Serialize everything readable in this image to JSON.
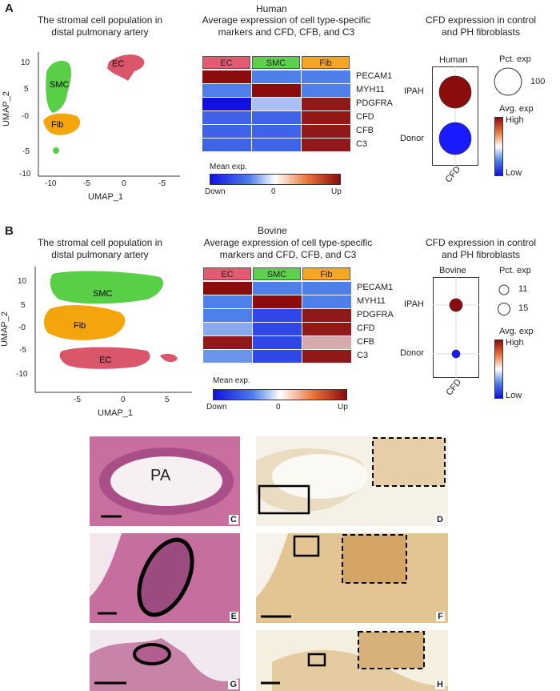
{
  "panelA": {
    "letter": "A",
    "species": "Human",
    "umap": {
      "title_line1": "The stromal cell population in",
      "title_line2": "distal pulmonary artery",
      "xlabel": "UMAP_1",
      "ylabel": "UMAP_2",
      "xticks": [
        "-10",
        "-5",
        "0",
        "-5"
      ],
      "yticks": [
        "10",
        "5",
        "-0",
        "-5",
        "-10"
      ],
      "clusters": [
        {
          "label": "EC",
          "color": "#d9566b"
        },
        {
          "label": "SMC",
          "color": "#58cf46"
        },
        {
          "label": "Fib",
          "color": "#f4a50c"
        }
      ]
    },
    "heatmap": {
      "title_line1": "Average expression of cell type-specific",
      "title_line2": "markers and CFD, CFB, and C3",
      "columns": [
        {
          "label": "EC",
          "color": "#e35b70"
        },
        {
          "label": "SMC",
          "color": "#5fcf50"
        },
        {
          "label": "Fib",
          "color": "#f5a623"
        }
      ],
      "genes": [
        "PECAM1",
        "MYH11",
        "PDGFRA",
        "CFD",
        "CFB",
        "C3"
      ],
      "values": [
        [
          1.0,
          -0.6,
          -0.6
        ],
        [
          -0.6,
          1.0,
          -0.6
        ],
        [
          -1.0,
          -0.3,
          0.95
        ],
        [
          -0.7,
          -0.7,
          0.95
        ],
        [
          -0.7,
          -0.7,
          0.95
        ],
        [
          -0.7,
          -0.7,
          0.95
        ]
      ],
      "legend_title": "Mean exp.",
      "legend_labels": [
        "Down",
        "0",
        "Up"
      ]
    },
    "dotplot": {
      "title_line1": "CFD expression in control",
      "title_line2": "and PH fibroblasts",
      "panel_title": "Human",
      "rows": [
        "IPAH",
        "Donor"
      ],
      "xlabel": "CFD",
      "pct_title": "Pct. exp",
      "pct_values": [
        "100"
      ],
      "avg_title": "Avg. exp",
      "avg_high": "High",
      "avg_low": "Low",
      "dots": [
        {
          "row": "IPAH",
          "color": "#8b0c0c"
        },
        {
          "row": "Donor",
          "color": "#1a1aff"
        }
      ]
    }
  },
  "panelB": {
    "letter": "B",
    "species": "Bovine",
    "umap": {
      "title_line1": "The stromal cell population in",
      "title_line2": "distal pulmonary artery",
      "xlabel": "UMAP_1",
      "ylabel": "UMAP_2",
      "xticks": [
        "-5",
        "0",
        "5"
      ],
      "yticks": [
        "10",
        "5",
        "-0",
        "-5",
        "-10"
      ],
      "clusters": [
        {
          "label": "SMC",
          "color": "#58cf46"
        },
        {
          "label": "Fib",
          "color": "#f4a50c"
        },
        {
          "label": "EC",
          "color": "#d9566b"
        }
      ]
    },
    "heatmap": {
      "title_line1": "Average expression of cell type-specific",
      "title_line2": "markers and CFD, CFB, and C3",
      "columns": [
        {
          "label": "EC",
          "color": "#e35b70"
        },
        {
          "label": "SMC",
          "color": "#5fcf50"
        },
        {
          "label": "Fib",
          "color": "#f5a623"
        }
      ],
      "genes": [
        "PECAM1",
        "MYH11",
        "PDGFRA",
        "CFD",
        "CFB",
        "C3"
      ],
      "values": [
        [
          1.0,
          -0.6,
          -0.6
        ],
        [
          -0.6,
          1.0,
          -0.6
        ],
        [
          -0.6,
          -0.8,
          0.95
        ],
        [
          -0.4,
          -0.8,
          0.95
        ],
        [
          0.95,
          -0.8,
          0.35
        ],
        [
          -0.5,
          -0.8,
          0.95
        ]
      ],
      "legend_title": "Mean exp.",
      "legend_labels": [
        "Down",
        "0",
        "Up"
      ]
    },
    "dotplot": {
      "title_line1": "CFD expression in control",
      "title_line2": "and PH fibroblasts",
      "panel_title": "Bovine",
      "rows": [
        "IPAH",
        "Donor"
      ],
      "xlabel": "CFD",
      "pct_title": "Pct. exp",
      "pct_values": [
        "11",
        "15"
      ],
      "avg_title": "Avg. exp",
      "avg_high": "High",
      "avg_low": "Low",
      "dots": [
        {
          "row": "IPAH",
          "color": "#8b0c0c"
        },
        {
          "row": "Donor",
          "color": "#1a1aff"
        }
      ]
    }
  },
  "micrographs": {
    "labels": [
      "C",
      "D",
      "E",
      "F",
      "G",
      "H"
    ],
    "lumen_label": "PA"
  }
}
